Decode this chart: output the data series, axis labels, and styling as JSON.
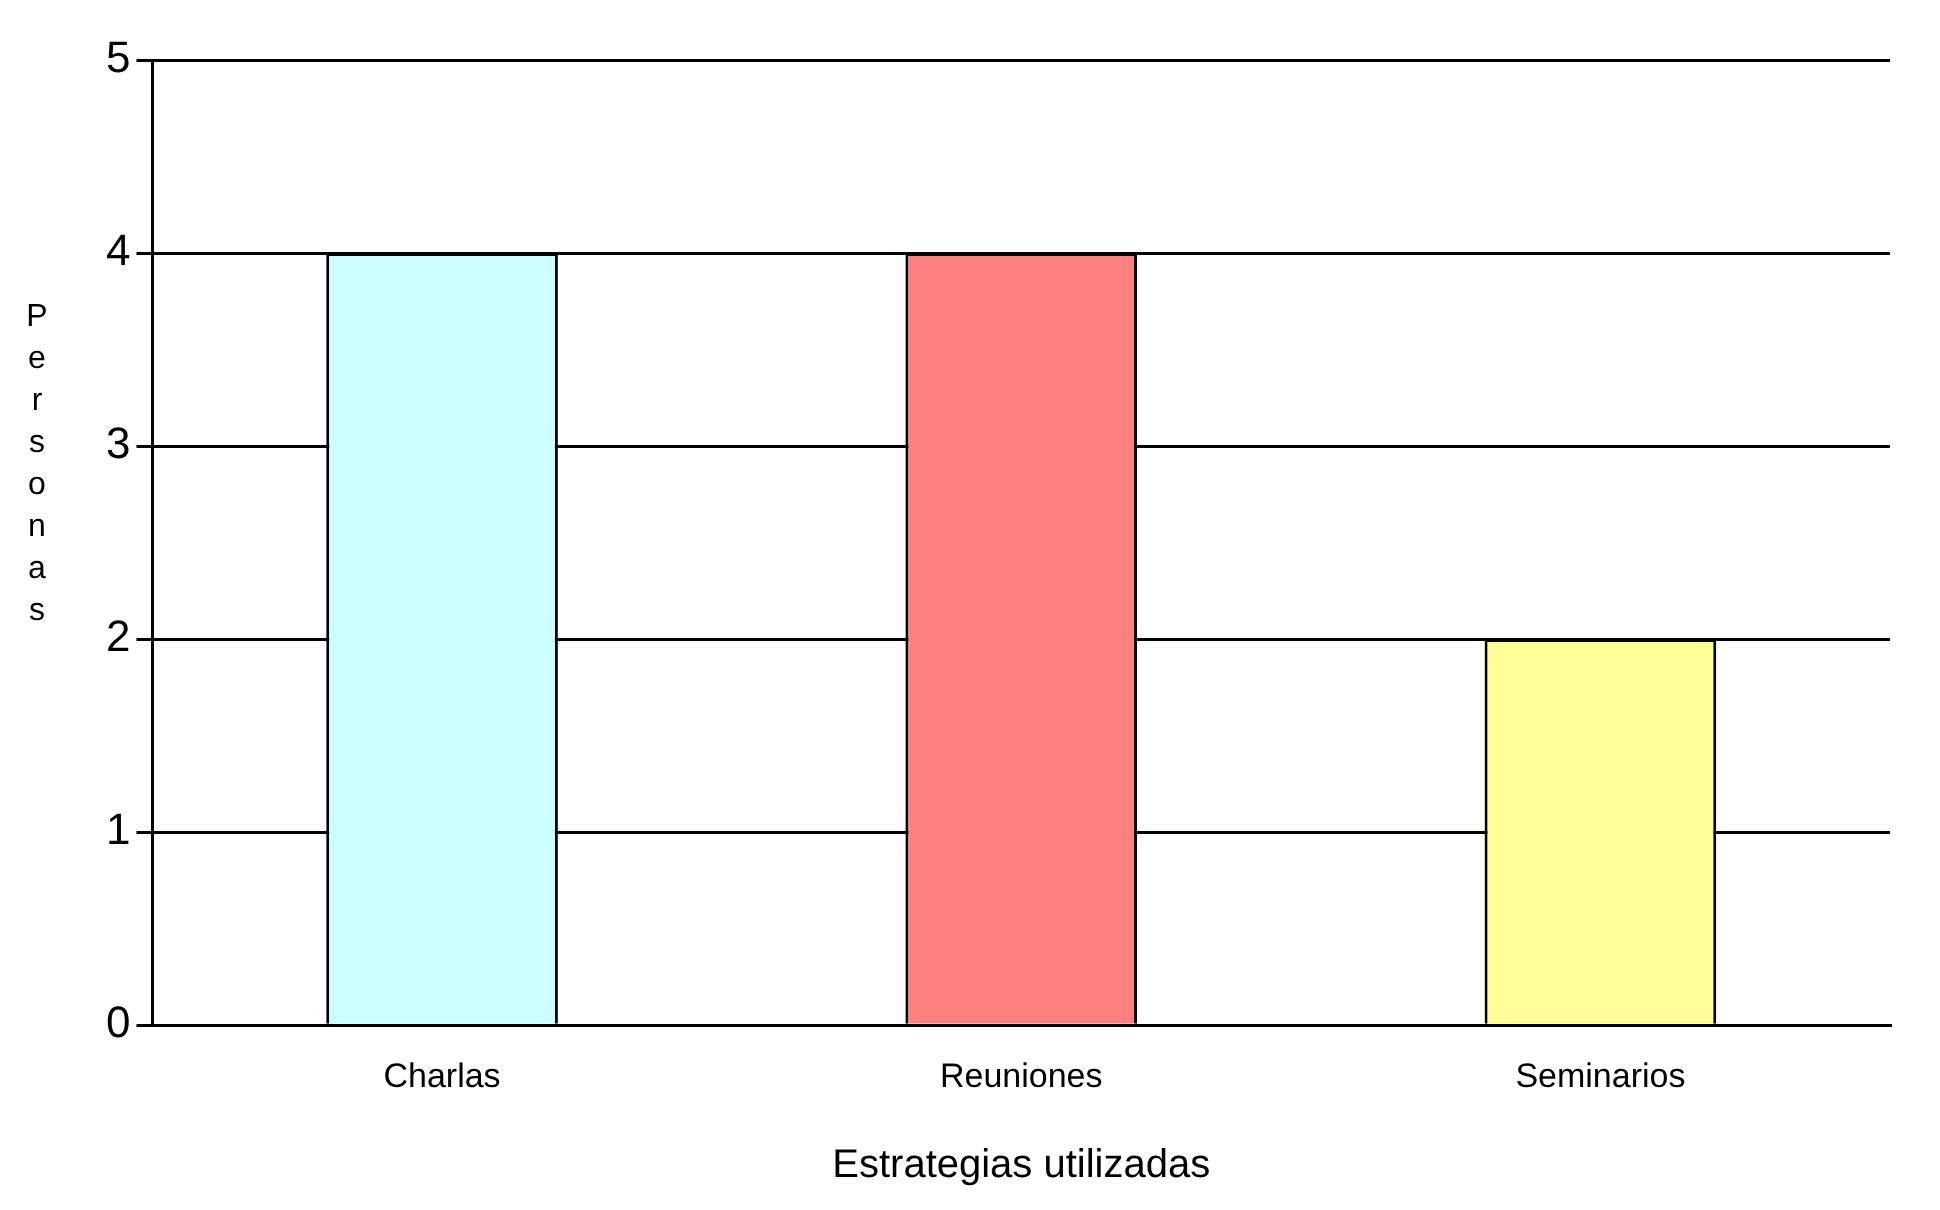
{
  "chart_data": {
    "type": "bar",
    "xlabel": "Estrategias utilizadas",
    "ylabel": "Personas",
    "categories": [
      "Charlas",
      "Reuniones",
      "Seminarios"
    ],
    "values": [
      4,
      4,
      2
    ],
    "colors": [
      "#ccffff",
      "#ff8080",
      "#ffff99"
    ],
    "ylim": [
      0,
      5
    ],
    "yticks": [
      0,
      1,
      2,
      3,
      4,
      5
    ],
    "grid": "y",
    "legend": false
  }
}
